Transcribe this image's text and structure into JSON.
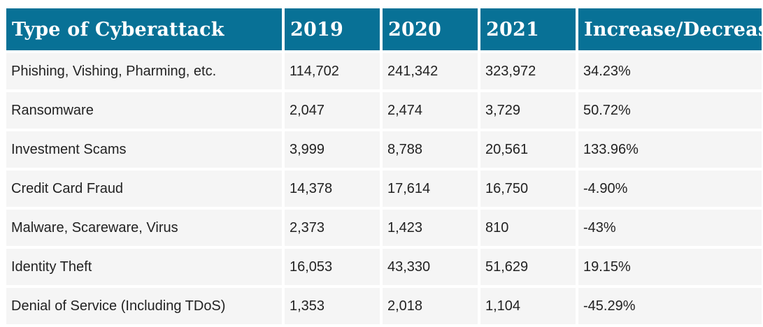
{
  "chart_data": {
    "type": "table",
    "columns": [
      "Type of Cyberattack",
      "2019",
      "2020",
      "2021",
      "Increase/Decrease"
    ],
    "rows": [
      [
        "Phishing, Vishing, Pharming, etc.",
        "114,702",
        "241,342",
        "323,972",
        "34.23%"
      ],
      [
        "Ransomware",
        "2,047",
        "2,474",
        "3,729",
        "50.72%"
      ],
      [
        "Investment Scams",
        "3,999",
        "8,788",
        "20,561",
        "133.96%"
      ],
      [
        "Credit Card Fraud",
        "14,378",
        "17,614",
        "16,750",
        "-4.90%"
      ],
      [
        "Malware, Scareware, Virus",
        "2,373",
        "1,423",
        "810",
        "-43%"
      ],
      [
        "Identity Theft",
        "16,053",
        "43,330",
        "51,629",
        "19.15%"
      ],
      [
        "Denial of Service (Including TDoS)",
        "1,353",
        "2,018",
        "1,104",
        "-45.29%"
      ]
    ],
    "colors": {
      "header_bg": "#087196",
      "header_text": "#ffffff",
      "cell_bg": "#f5f5f5",
      "cell_text": "#222222"
    }
  }
}
